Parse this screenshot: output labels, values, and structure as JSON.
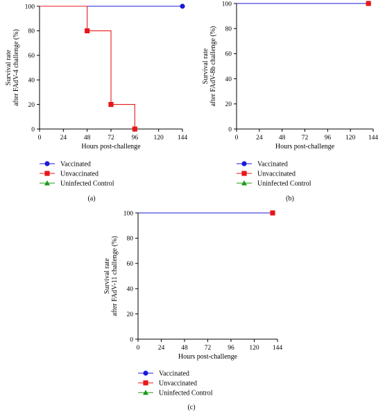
{
  "chart_data": [
    {
      "type": "line",
      "panel_label": "(a)",
      "xlabel": "Hours post-challenge",
      "ylabel_line1": "Survival rate",
      "ylabel_line2": "after FAdV-4 challenge (%)",
      "xlim": [
        0,
        144
      ],
      "ylim": [
        0,
        100
      ],
      "xticks": [
        0,
        24,
        48,
        72,
        96,
        120,
        144
      ],
      "yticks": [
        0,
        20,
        40,
        60,
        80,
        100
      ],
      "step": true,
      "series": [
        {
          "name": "Vaccinated",
          "color": "#1a1adb",
          "marker": "circle",
          "points": [
            [
              0,
              100
            ],
            [
              144,
              100
            ]
          ],
          "marker_points": [
            [
              144,
              100
            ]
          ]
        },
        {
          "name": "Unvaccinated",
          "color": "#e8161a",
          "marker": "square",
          "points": [
            [
              0,
              100
            ],
            [
              48,
              100
            ],
            [
              48,
              80
            ],
            [
              72,
              80
            ],
            [
              72,
              20
            ],
            [
              96,
              20
            ],
            [
              96,
              0
            ]
          ],
          "marker_points": [
            [
              48,
              80
            ],
            [
              72,
              20
            ],
            [
              96,
              0
            ]
          ]
        },
        {
          "name": "Uninfected Control",
          "color": "#1a9a1a",
          "marker": "triangle",
          "points": [],
          "marker_points": []
        }
      ],
      "legend": [
        "Vaccinated",
        "Unvaccinated",
        "Uninfected Control"
      ]
    },
    {
      "type": "line",
      "panel_label": "(b)",
      "xlabel": "Hours post-challenge",
      "ylabel_line1": "Survival rate",
      "ylabel_line2": "after FAdV-8b challenge (%)",
      "xlim": [
        0,
        144
      ],
      "ylim": [
        0,
        100
      ],
      "xticks": [
        0,
        24,
        48,
        72,
        96,
        120,
        144
      ],
      "yticks": [
        0,
        20,
        40,
        60,
        80,
        100
      ],
      "step": true,
      "series": [
        {
          "name": "Vaccinated",
          "color": "#1a1adb",
          "marker": "circle",
          "points": [
            [
              0,
              100
            ],
            [
              139,
              100
            ]
          ],
          "marker_points": [
            [
              139,
              100
            ]
          ]
        },
        {
          "name": "Unvaccinated",
          "color": "#e8161a",
          "marker": "square",
          "points": [],
          "marker_points": [
            [
              139,
              100
            ]
          ]
        },
        {
          "name": "Uninfected Control",
          "color": "#1a9a1a",
          "marker": "triangle",
          "points": [],
          "marker_points": []
        }
      ],
      "legend": [
        "Vaccinated",
        "Unvaccinated",
        "Uninfected Control"
      ]
    },
    {
      "type": "line",
      "panel_label": "(c)",
      "xlabel": "Hours post-challenge",
      "ylabel_line1": "Survival rate",
      "ylabel_line2": "after FAdV-11 challenge (%)",
      "xlim": [
        0,
        144
      ],
      "ylim": [
        0,
        100
      ],
      "xticks": [
        0,
        24,
        48,
        72,
        96,
        120,
        144
      ],
      "yticks": [
        0,
        20,
        40,
        60,
        80,
        100
      ],
      "step": true,
      "series": [
        {
          "name": "Vaccinated",
          "color": "#1a1adb",
          "marker": "circle",
          "points": [
            [
              0,
              100
            ],
            [
              139,
              100
            ]
          ],
          "marker_points": [
            [
              139,
              100
            ]
          ]
        },
        {
          "name": "Unvaccinated",
          "color": "#e8161a",
          "marker": "square",
          "points": [],
          "marker_points": [
            [
              139,
              100
            ]
          ]
        },
        {
          "name": "Uninfected Control",
          "color": "#1a9a1a",
          "marker": "triangle",
          "points": [],
          "marker_points": []
        }
      ],
      "legend": [
        "Vaccinated",
        "Unvaccinated",
        "Uninfected Control"
      ]
    }
  ]
}
